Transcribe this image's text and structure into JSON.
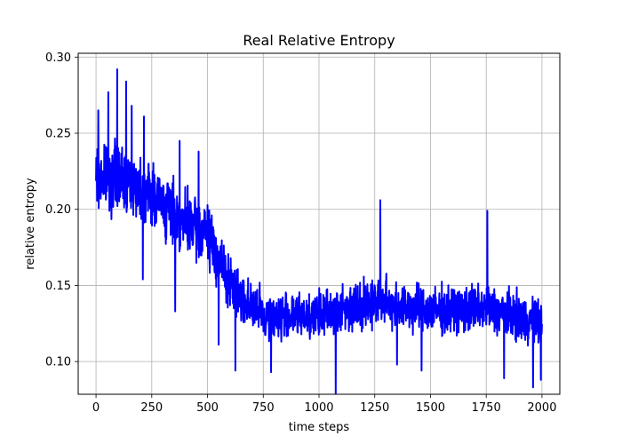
{
  "chart_data": {
    "type": "line",
    "title": "Real Relative Entropy",
    "xlabel": "time steps",
    "ylabel": "relative entropy",
    "xlim": [
      -80,
      2080
    ],
    "ylim": [
      0.0785,
      0.3025
    ],
    "grid": true,
    "x_ticks": [
      0,
      250,
      500,
      750,
      1000,
      1250,
      1500,
      1750,
      2000
    ],
    "x_tick_labels": [
      "0",
      "250",
      "500",
      "750",
      "1000",
      "1250",
      "1500",
      "1750",
      "2000"
    ],
    "y_ticks": [
      0.1,
      0.15,
      0.2,
      0.25,
      0.3
    ],
    "y_tick_labels": [
      "0.10",
      "0.15",
      "0.20",
      "0.25",
      "0.30"
    ],
    "series": [
      {
        "color": "#0000ff",
        "x_start": 0,
        "x_end": 2000,
        "trend": [
          {
            "x": 0,
            "y": 0.22
          },
          {
            "x": 100,
            "y": 0.222
          },
          {
            "x": 250,
            "y": 0.21
          },
          {
            "x": 400,
            "y": 0.19
          },
          {
            "x": 500,
            "y": 0.185
          },
          {
            "x": 600,
            "y": 0.15
          },
          {
            "x": 750,
            "y": 0.13
          },
          {
            "x": 1000,
            "y": 0.13
          },
          {
            "x": 1250,
            "y": 0.14
          },
          {
            "x": 1500,
            "y": 0.133
          },
          {
            "x": 1750,
            "y": 0.135
          },
          {
            "x": 2000,
            "y": 0.125
          }
        ],
        "noise_amplitude": [
          {
            "x": 0,
            "y": 0.03
          },
          {
            "x": 500,
            "y": 0.028
          },
          {
            "x": 700,
            "y": 0.022
          },
          {
            "x": 2000,
            "y": 0.022
          }
        ],
        "peaks": [
          {
            "x": 10,
            "y": 0.265
          },
          {
            "x": 55,
            "y": 0.277
          },
          {
            "x": 95,
            "y": 0.292
          },
          {
            "x": 135,
            "y": 0.284
          },
          {
            "x": 160,
            "y": 0.268
          },
          {
            "x": 215,
            "y": 0.261
          },
          {
            "x": 375,
            "y": 0.245
          },
          {
            "x": 460,
            "y": 0.238
          },
          {
            "x": 1275,
            "y": 0.206
          },
          {
            "x": 1755,
            "y": 0.199
          },
          {
            "x": 1995,
            "y": 0.175
          }
        ],
        "troughs": [
          {
            "x": 210,
            "y": 0.154
          },
          {
            "x": 355,
            "y": 0.133
          },
          {
            "x": 550,
            "y": 0.111
          },
          {
            "x": 625,
            "y": 0.094
          },
          {
            "x": 785,
            "y": 0.093
          },
          {
            "x": 1075,
            "y": 0.079
          },
          {
            "x": 1350,
            "y": 0.098
          },
          {
            "x": 1460,
            "y": 0.094
          },
          {
            "x": 1830,
            "y": 0.089
          },
          {
            "x": 1960,
            "y": 0.083
          },
          {
            "x": 1995,
            "y": 0.088
          }
        ]
      }
    ]
  }
}
